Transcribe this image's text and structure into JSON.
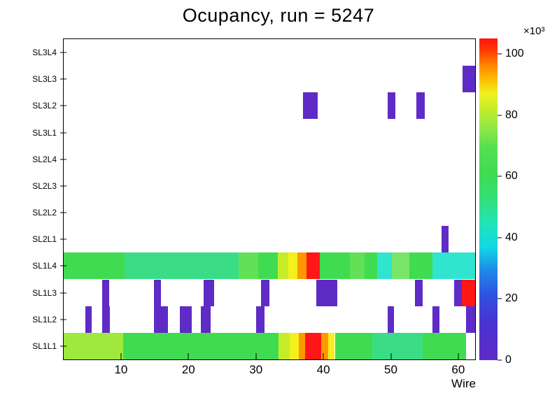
{
  "chart_data": {
    "type": "heatmap",
    "title": "Ocupancy, run = 5247",
    "xlabel": "Wire",
    "x_ticks": [
      10,
      20,
      30,
      40,
      50,
      60
    ],
    "xlim": [
      1.5,
      62.5
    ],
    "rows_bottom_to_top": [
      "SL1L1",
      "SL1L2",
      "SL1L3",
      "SL1L4",
      "SL2L1",
      "SL2L2",
      "SL2L3",
      "SL2L4",
      "SL3L1",
      "SL3L2",
      "SL3L3",
      "SL3L4"
    ],
    "value_units": "counts x1000",
    "colorbar": {
      "label": "×10³",
      "ticks": [
        0,
        20,
        40,
        60,
        80,
        100
      ],
      "zlim": [
        0,
        105
      ],
      "stops": [
        [
          0.0,
          "#5f2bc6"
        ],
        [
          0.12,
          "#4834d2"
        ],
        [
          0.2,
          "#2f50e2"
        ],
        [
          0.28,
          "#1f8ae8"
        ],
        [
          0.35,
          "#13d6e6"
        ],
        [
          0.43,
          "#23e4b4"
        ],
        [
          0.5,
          "#32e077"
        ],
        [
          0.58,
          "#3fdc51"
        ],
        [
          0.66,
          "#55df52"
        ],
        [
          0.72,
          "#8fe845"
        ],
        [
          0.78,
          "#c4ec2b"
        ],
        [
          0.83,
          "#f2f01d"
        ],
        [
          0.88,
          "#ffb400"
        ],
        [
          0.92,
          "#ff8000"
        ],
        [
          0.96,
          "#ff4000"
        ],
        [
          1.0,
          "#ff1212"
        ]
      ]
    },
    "cells": [
      {
        "r": "SL1L1",
        "x1": 1.5,
        "x2": 10.3,
        "v": 70,
        "c": "#9fe83c"
      },
      {
        "r": "SL1L1",
        "x1": 10.3,
        "x2": 33.4,
        "v": 57,
        "c": "#3fdc51"
      },
      {
        "r": "SL1L1",
        "x1": 33.4,
        "x2": 35.0,
        "v": 77,
        "c": "#c6ec28"
      },
      {
        "r": "SL1L1",
        "x1": 35.0,
        "x2": 36.4,
        "v": 83,
        "c": "#f4f01c"
      },
      {
        "r": "SL1L1",
        "x1": 36.4,
        "x2": 37.3,
        "v": 91,
        "c": "#ff9800"
      },
      {
        "r": "SL1L1",
        "x1": 37.3,
        "x2": 39.7,
        "v": 101,
        "c": "#ff1616"
      },
      {
        "r": "SL1L1",
        "x1": 39.7,
        "x2": 40.7,
        "v": 91,
        "c": "#ff9800"
      },
      {
        "r": "SL1L1",
        "x1": 40.7,
        "x2": 41.7,
        "v": 83,
        "c": "#f4f01c"
      },
      {
        "r": "SL1L1",
        "x1": 41.7,
        "x2": 47.2,
        "v": 57,
        "c": "#3fdc51"
      },
      {
        "r": "SL1L1",
        "x1": 47.2,
        "x2": 54.7,
        "v": 50,
        "c": "#3add86"
      },
      {
        "r": "SL1L1",
        "x1": 54.7,
        "x2": 61.1,
        "v": 57,
        "c": "#3fdc51"
      },
      {
        "r": "SL1L2",
        "x1": 4.7,
        "x2": 5.7,
        "v": 5,
        "c": "#5f2bc6"
      },
      {
        "r": "SL1L2",
        "x1": 7.2,
        "x2": 8.3,
        "v": 5,
        "c": "#5f2bc6"
      },
      {
        "r": "SL1L2",
        "x1": 14.9,
        "x2": 17.0,
        "v": 5,
        "c": "#5f2bc6"
      },
      {
        "r": "SL1L2",
        "x1": 18.7,
        "x2": 20.5,
        "v": 5,
        "c": "#5f2bc6"
      },
      {
        "r": "SL1L2",
        "x1": 21.8,
        "x2": 23.3,
        "v": 5,
        "c": "#5f2bc6"
      },
      {
        "r": "SL1L2",
        "x1": 30.0,
        "x2": 31.3,
        "v": 5,
        "c": "#5f2bc6"
      },
      {
        "r": "SL1L2",
        "x1": 49.5,
        "x2": 50.5,
        "v": 5,
        "c": "#5f2bc6"
      },
      {
        "r": "SL1L2",
        "x1": 56.2,
        "x2": 57.2,
        "v": 5,
        "c": "#5f2bc6"
      },
      {
        "r": "SL1L2",
        "x1": 61.1,
        "x2": 62.5,
        "v": 5,
        "c": "#5f2bc6"
      },
      {
        "r": "SL1L3",
        "x1": 7.2,
        "x2": 8.2,
        "v": 5,
        "c": "#5f2bc6"
      },
      {
        "r": "SL1L3",
        "x1": 14.9,
        "x2": 15.9,
        "v": 5,
        "c": "#5f2bc6"
      },
      {
        "r": "SL1L3",
        "x1": 22.3,
        "x2": 23.8,
        "v": 5,
        "c": "#5f2bc6"
      },
      {
        "r": "SL1L3",
        "x1": 30.8,
        "x2": 32.0,
        "v": 5,
        "c": "#5f2bc6"
      },
      {
        "r": "SL1L3",
        "x1": 39.0,
        "x2": 42.1,
        "v": 5,
        "c": "#5f2bc6"
      },
      {
        "r": "SL1L3",
        "x1": 53.6,
        "x2": 54.7,
        "v": 5,
        "c": "#5f2bc6"
      },
      {
        "r": "SL1L3",
        "x1": 59.4,
        "x2": 60.5,
        "v": 5,
        "c": "#5f2bc6"
      },
      {
        "r": "SL1L3",
        "x1": 60.5,
        "x2": 62.5,
        "v": 101,
        "c": "#ff1616"
      },
      {
        "r": "SL1L4",
        "x1": 1.5,
        "x2": 10.5,
        "v": 57,
        "c": "#3fdc51"
      },
      {
        "r": "SL1L4",
        "x1": 10.5,
        "x2": 27.4,
        "v": 50,
        "c": "#3add86"
      },
      {
        "r": "SL1L4",
        "x1": 27.4,
        "x2": 30.3,
        "v": 62,
        "c": "#62e157"
      },
      {
        "r": "SL1L4",
        "x1": 30.3,
        "x2": 33.2,
        "v": 57,
        "c": "#3fdc51"
      },
      {
        "r": "SL1L4",
        "x1": 33.2,
        "x2": 34.8,
        "v": 77,
        "c": "#c6ec28"
      },
      {
        "r": "SL1L4",
        "x1": 34.8,
        "x2": 36.1,
        "v": 83,
        "c": "#f4f01c"
      },
      {
        "r": "SL1L4",
        "x1": 36.1,
        "x2": 37.5,
        "v": 91,
        "c": "#ff9800"
      },
      {
        "r": "SL1L4",
        "x1": 37.5,
        "x2": 39.5,
        "v": 101,
        "c": "#ff1616"
      },
      {
        "r": "SL1L4",
        "x1": 39.5,
        "x2": 43.9,
        "v": 57,
        "c": "#3fdc51"
      },
      {
        "r": "SL1L4",
        "x1": 43.9,
        "x2": 46.1,
        "v": 62,
        "c": "#62e157"
      },
      {
        "r": "SL1L4",
        "x1": 46.1,
        "x2": 48.0,
        "v": 57,
        "c": "#3fdc51"
      },
      {
        "r": "SL1L4",
        "x1": 48.0,
        "x2": 50.2,
        "v": 42,
        "c": "#2fe5cf"
      },
      {
        "r": "SL1L4",
        "x1": 50.2,
        "x2": 52.7,
        "v": 65,
        "c": "#79e56b"
      },
      {
        "r": "SL1L4",
        "x1": 52.7,
        "x2": 56.2,
        "v": 57,
        "c": "#3fdc51"
      },
      {
        "r": "SL1L4",
        "x1": 56.2,
        "x2": 62.5,
        "v": 42,
        "c": "#2fe5cf"
      },
      {
        "r": "SL2L1",
        "x1": 57.5,
        "x2": 58.6,
        "v": 5,
        "c": "#5f2bc6"
      },
      {
        "r": "SL3L2",
        "x1": 37.0,
        "x2": 39.2,
        "v": 5,
        "c": "#5f2bc6"
      },
      {
        "r": "SL3L2",
        "x1": 49.5,
        "x2": 50.7,
        "v": 5,
        "c": "#5f2bc6"
      },
      {
        "r": "SL3L2",
        "x1": 53.8,
        "x2": 55.0,
        "v": 5,
        "c": "#5f2bc6"
      },
      {
        "r": "SL3L3",
        "x1": 60.6,
        "x2": 62.5,
        "v": 5,
        "c": "#5f2bc6"
      }
    ]
  }
}
